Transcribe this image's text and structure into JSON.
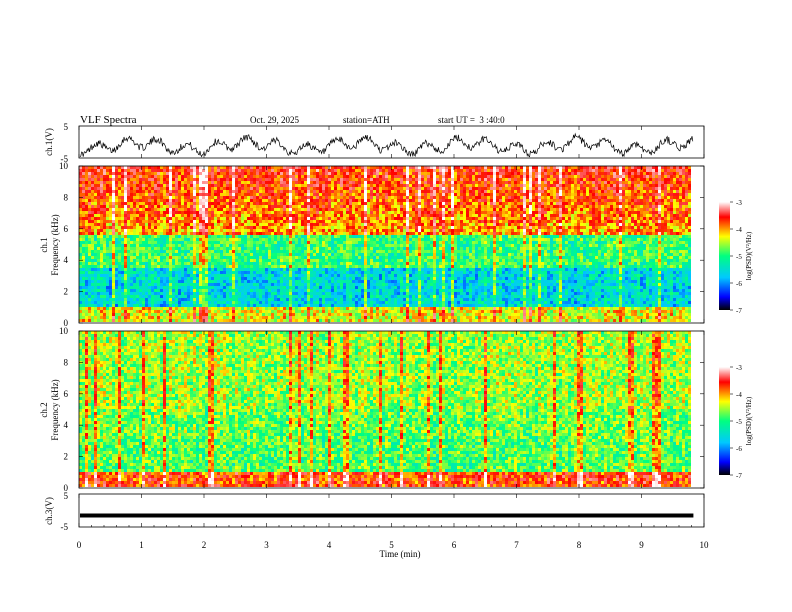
{
  "header": {
    "title": "VLF Spectra",
    "date": "Oct. 29, 2025",
    "station": "station=ATH",
    "start_ut": "start UT =  3 :40:0"
  },
  "chart_data": [
    {
      "type": "line",
      "id": "ch1",
      "ylabel": "ch.1(V)",
      "ylim": [
        -5,
        5
      ],
      "yticks": [
        "5",
        "-5"
      ],
      "description_values": "waveform oscillating roughly between -4 and 2 V"
    },
    {
      "type": "heatmap",
      "id": "ch1-spectrum",
      "ylabel_line1": "ch.1",
      "ylabel_line2": "Frequency (kHz)",
      "ylim": [
        0,
        10
      ],
      "yticks": [
        "10",
        "8",
        "6",
        "4",
        "2",
        "0"
      ],
      "colorbar_label": "log(PSD)(V²/Hz)",
      "colorbar_range": [
        -7,
        -3
      ],
      "colorbar_ticks": [
        "-3",
        "-4",
        "-5",
        "-6",
        "-7"
      ]
    },
    {
      "type": "heatmap",
      "id": "ch2-spectrum",
      "ylabel_line1": "ch.2",
      "ylabel_line2": "Frequency (kHz)",
      "ylim": [
        0,
        10
      ],
      "yticks": [
        "10",
        "8",
        "6",
        "4",
        "2",
        "0"
      ],
      "colorbar_label": "log(PSD)(V²/Hz)",
      "colorbar_range": [
        -7,
        -3
      ],
      "colorbar_ticks": [
        "-3",
        "-4",
        "-5",
        "-6",
        "-7"
      ]
    },
    {
      "type": "line",
      "id": "ch3",
      "ylabel": "ch.3(V)",
      "ylim": [
        -5,
        5
      ],
      "yticks": [
        "5",
        "0",
        "-5"
      ],
      "constant_value": -1.5
    }
  ],
  "xaxis": {
    "label": "Time (min)",
    "ticks": [
      "0",
      "1",
      "2",
      "3",
      "4",
      "5",
      "6",
      "7",
      "8",
      "9",
      "10"
    ],
    "xlim": [
      0,
      10
    ],
    "data_end": 9.83
  },
  "colors": {
    "scale": [
      "#000000",
      "#0000ff",
      "#00c8ff",
      "#00ff80",
      "#ffff00",
      "#ff0000",
      "#ffffff"
    ]
  }
}
